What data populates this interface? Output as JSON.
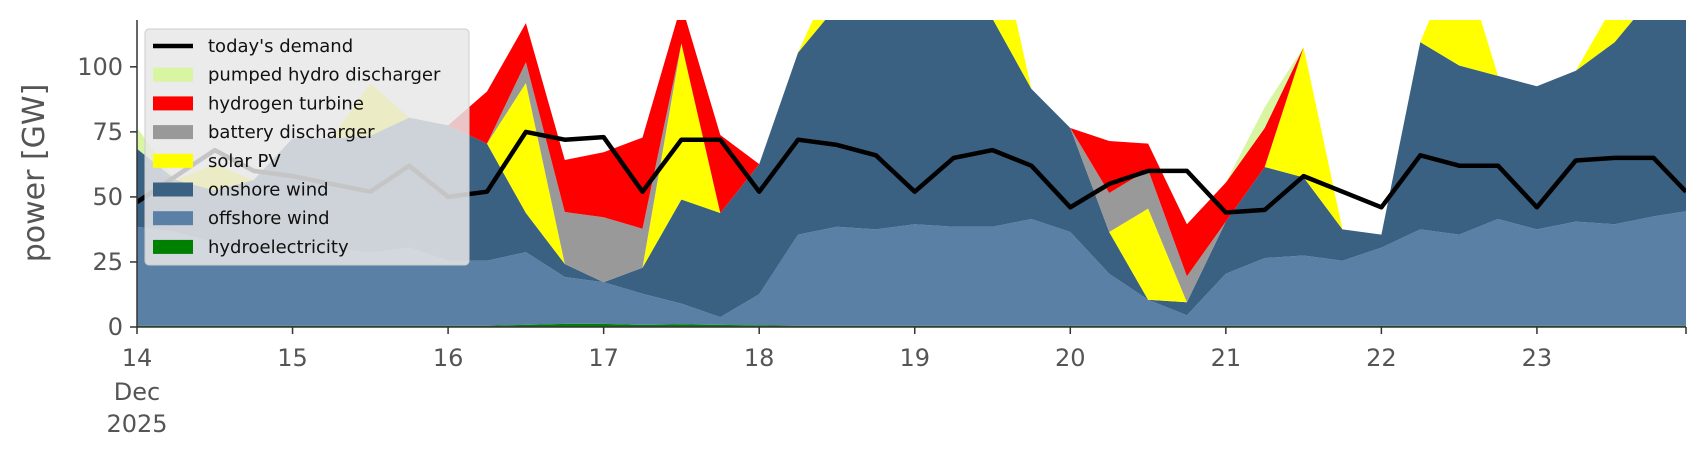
{
  "chart_data": {
    "type": "area",
    "ylabel": "power [GW]",
    "ylim": [
      0,
      118
    ],
    "y_ticks": [
      0,
      25,
      50,
      75,
      100
    ],
    "x_range": [
      "2025-12-14",
      "2025-12-23T23:00"
    ],
    "x_ticks": [
      {
        "x": "2025-12-14",
        "label": "14",
        "sub": [
          "Dec",
          "2025"
        ]
      },
      {
        "x": "2025-12-15",
        "label": "15"
      },
      {
        "x": "2025-12-16",
        "label": "16"
      },
      {
        "x": "2025-12-17",
        "label": "17"
      },
      {
        "x": "2025-12-18",
        "label": "18"
      },
      {
        "x": "2025-12-19",
        "label": "19"
      },
      {
        "x": "2025-12-20",
        "label": "20"
      },
      {
        "x": "2025-12-21",
        "label": "21"
      },
      {
        "x": "2025-12-22",
        "label": "22"
      },
      {
        "x": "2025-12-23",
        "label": "23"
      }
    ],
    "grid": false,
    "legend": {
      "position": "top-left"
    },
    "x": [
      "2025-12-14T00:00",
      "2025-12-14T06:00",
      "2025-12-14T12:00",
      "2025-12-14T18:00",
      "2025-12-15T00:00",
      "2025-12-15T06:00",
      "2025-12-15T12:00",
      "2025-12-15T18:00",
      "2025-12-16T00:00",
      "2025-12-16T06:00",
      "2025-12-16T12:00",
      "2025-12-16T18:00",
      "2025-12-17T00:00",
      "2025-12-17T06:00",
      "2025-12-17T12:00",
      "2025-12-17T18:00",
      "2025-12-18T00:00",
      "2025-12-18T06:00",
      "2025-12-18T12:00",
      "2025-12-18T18:00",
      "2025-12-19T00:00",
      "2025-12-19T06:00",
      "2025-12-19T12:00",
      "2025-12-19T18:00",
      "2025-12-20T00:00",
      "2025-12-20T06:00",
      "2025-12-20T12:00",
      "2025-12-20T18:00",
      "2025-12-21T00:00",
      "2025-12-21T06:00",
      "2025-12-21T12:00",
      "2025-12-21T18:00",
      "2025-12-22T00:00",
      "2025-12-22T06:00",
      "2025-12-22T12:00",
      "2025-12-22T18:00",
      "2025-12-23T00:00",
      "2025-12-23T06:00",
      "2025-12-23T12:00",
      "2025-12-23T18:00",
      "2025-12-23T23:00"
    ],
    "series": [
      {
        "name": "hydroelectricity",
        "color": "#008000",
        "values": [
          0.5,
          0.5,
          0.5,
          0.5,
          0.5,
          0.5,
          0.5,
          0.5,
          0.5,
          0.5,
          0.8,
          1.2,
          1.2,
          0.8,
          1.0,
          0.8,
          0.6,
          0.5,
          0.5,
          0.5,
          0.5,
          0.5,
          0.5,
          0.5,
          0.5,
          0.5,
          0.5,
          0.5,
          0.5,
          0.5,
          0.5,
          0.5,
          0.5,
          0.5,
          0.5,
          0.5,
          0.5,
          0.5,
          0.5,
          0.5,
          0.5
        ]
      },
      {
        "name": "offshore wind",
        "color": "#5b80a5",
        "values": [
          38,
          36,
          32,
          28,
          30,
          30,
          28,
          30,
          25,
          25,
          28,
          18,
          16,
          12,
          8,
          3,
          12,
          35,
          38,
          37,
          39,
          38,
          38,
          41,
          36,
          20,
          10,
          4,
          20,
          26,
          27,
          25,
          30,
          37,
          35,
          41,
          37,
          40,
          39,
          42,
          44
        ]
      },
      {
        "name": "onshore wind",
        "color": "#3b6182",
        "values": [
          30,
          20,
          20,
          28,
          42,
          42,
          45,
          50,
          52,
          45,
          15,
          5,
          0,
          10,
          40,
          40,
          50,
          70,
          85,
          100,
          90,
          85,
          80,
          50,
          40,
          16,
          0,
          5,
          20,
          35,
          30,
          12,
          5,
          72,
          65,
          55,
          55,
          58,
          70,
          85,
          75
        ]
      },
      {
        "name": "solar PV",
        "color": "#ffff00",
        "values": [
          0,
          0,
          10,
          0,
          0,
          0,
          20,
          0,
          0,
          0,
          50,
          0,
          0,
          0,
          60,
          0,
          0,
          0,
          15,
          0,
          0,
          0,
          40,
          0,
          0,
          0,
          35,
          0,
          0,
          0,
          50,
          0,
          0,
          0,
          45,
          0,
          0,
          0,
          15,
          0,
          0
        ]
      },
      {
        "name": "battery discharger",
        "color": "#999999",
        "values": [
          0,
          0,
          0,
          0,
          0,
          0,
          0,
          0,
          0,
          0,
          8,
          20,
          25,
          15,
          0,
          0,
          0,
          0,
          0,
          0,
          0,
          0,
          0,
          0,
          0,
          15,
          15,
          10,
          0,
          0,
          0,
          0,
          0,
          0,
          0,
          0,
          0,
          0,
          0,
          0,
          0
        ]
      },
      {
        "name": "hydrogen turbine",
        "color": "#ff0000",
        "values": [
          0,
          0,
          0,
          0,
          0,
          0,
          0,
          0,
          0,
          20,
          15,
          20,
          25,
          35,
          15,
          30,
          0,
          0,
          0,
          0,
          0,
          0,
          0,
          0,
          0,
          20,
          10,
          20,
          15,
          15,
          0,
          0,
          0,
          0,
          0,
          0,
          0,
          0,
          0,
          0,
          0
        ]
      },
      {
        "name": "pumped hydro discharger",
        "color": "#d8f5a2",
        "values": [
          8,
          0,
          0,
          0,
          0,
          0,
          0,
          0,
          0,
          0,
          0,
          0,
          0,
          0,
          0,
          0,
          0,
          0,
          0,
          0,
          0,
          0,
          0,
          0,
          0,
          0,
          0,
          0,
          0,
          8,
          0,
          0,
          0,
          0,
          0,
          0,
          0,
          0,
          0,
          0,
          0
        ]
      }
    ],
    "demand": {
      "name": "today's demand",
      "color": "#000000",
      "values": [
        48,
        58,
        68,
        60,
        58,
        55,
        52,
        62,
        50,
        52,
        75,
        72,
        73,
        52,
        72,
        72,
        52,
        72,
        70,
        66,
        52,
        65,
        68,
        62,
        46,
        55,
        60,
        60,
        44,
        45,
        58,
        52,
        46,
        66,
        62,
        62,
        46,
        64,
        65,
        65,
        52
      ]
    }
  }
}
